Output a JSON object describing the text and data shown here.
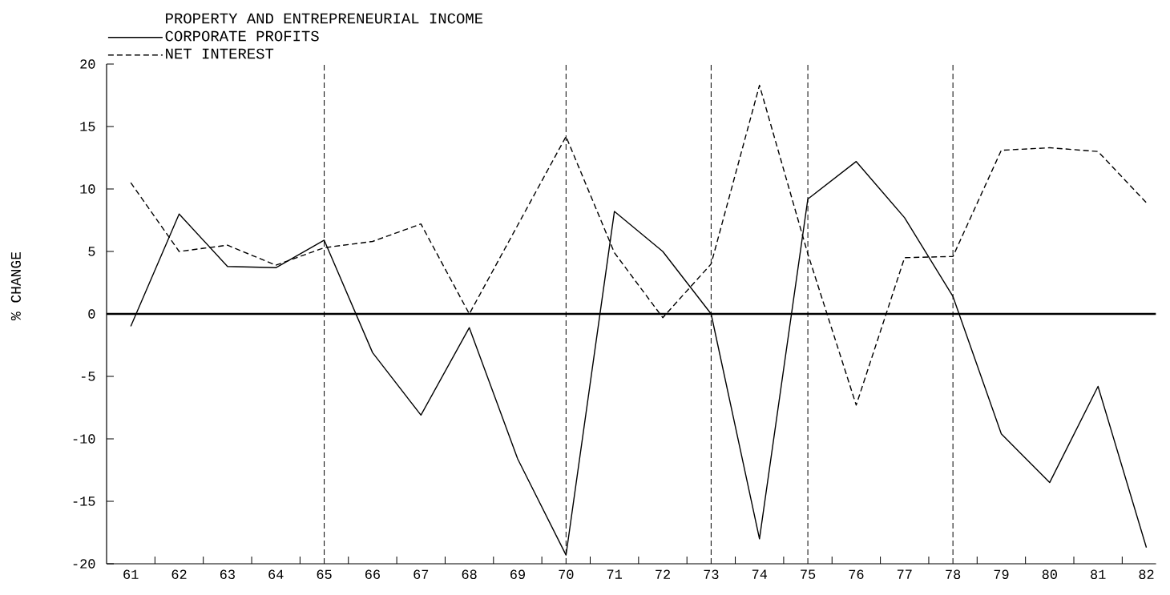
{
  "chart_data": {
    "type": "line",
    "legend_title": "PROPERTY AND ENTREPRENEURIAL INCOME",
    "ylabel": "% CHANGE",
    "x": [
      61,
      62,
      63,
      64,
      65,
      66,
      67,
      68,
      69,
      70,
      71,
      72,
      73,
      74,
      75,
      76,
      77,
      78,
      79,
      80,
      81,
      82
    ],
    "series": [
      {
        "name": "CORPORATE PROFITS",
        "color": "#000000",
        "line_style": "solid",
        "values": [
          -1.0,
          8.0,
          3.8,
          3.7,
          5.9,
          -3.1,
          -8.1,
          -1.1,
          -11.6,
          -19.3,
          8.2,
          5.0,
          0.0,
          -18.0,
          9.2,
          12.2,
          7.7,
          1.4,
          -9.6,
          -13.5,
          -5.8,
          -18.7
        ]
      },
      {
        "name": "NET INTEREST",
        "color": "#000000",
        "line_style": "dashed",
        "values": [
          10.5,
          5.0,
          5.5,
          3.9,
          5.3,
          5.8,
          7.2,
          0.0,
          7.1,
          14.2,
          4.9,
          -0.3,
          4.0,
          18.3,
          4.8,
          -7.3,
          4.5,
          4.6,
          13.1,
          13.3,
          13.0,
          8.9
        ]
      }
    ],
    "xlim": [
      60.5,
      82.2
    ],
    "xticks": [
      61,
      62,
      63,
      64,
      65,
      66,
      67,
      68,
      69,
      70,
      71,
      72,
      73,
      74,
      75,
      76,
      77,
      78,
      79,
      80,
      81,
      82,
      {
        "value": 61.5,
        "label": null
      },
      {
        "value": 62.5,
        "label": null
      },
      {
        "value": 63.5,
        "label": null
      },
      {
        "value": 64.5,
        "label": null
      },
      {
        "value": 65.5,
        "label": null
      },
      {
        "value": 66.5,
        "label": null
      },
      {
        "value": 67.5,
        "label": null
      },
      {
        "value": 68.5,
        "label": null
      },
      {
        "value": 69.5,
        "label": null
      },
      {
        "value": 70.5,
        "label": null
      },
      {
        "value": 71.5,
        "label": null
      },
      {
        "value": 72.5,
        "label": null
      },
      {
        "value": 73.5,
        "label": null
      },
      {
        "value": 74.5,
        "label": null
      },
      {
        "value": 75.5,
        "label": null
      },
      {
        "value": 76.5,
        "label": null
      },
      {
        "value": 77.5,
        "label": null
      },
      {
        "value": 78.5,
        "label": null
      },
      {
        "value": 79.5,
        "label": null
      },
      {
        "value": 80.5,
        "label": null
      },
      {
        "value": 81.5,
        "label": null
      }
    ],
    "ylim": [
      -20,
      20
    ],
    "yticks": [
      -20,
      -15,
      -10,
      -5,
      0,
      5,
      10,
      15,
      20
    ],
    "ref_lines": [
      {
        "axis": "x",
        "value": 65,
        "line_style": "dashed",
        "color": "#000000"
      },
      {
        "axis": "x",
        "value": 70,
        "line_style": "dashed",
        "color": "#000000"
      },
      {
        "axis": "x",
        "value": 73,
        "line_style": "dashed",
        "color": "#000000"
      },
      {
        "axis": "x",
        "value": 75,
        "line_style": "dashed",
        "color": "#000000"
      },
      {
        "axis": "x",
        "value": 78,
        "line_style": "dashed",
        "color": "#000000"
      },
      {
        "axis": "y",
        "value": 0,
        "line_style": "solid",
        "color": "#000000"
      }
    ],
    "legend": "top left"
  }
}
